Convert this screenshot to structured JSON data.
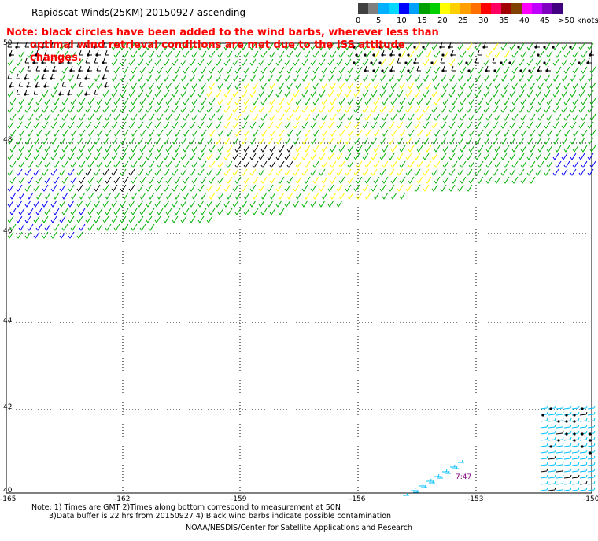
{
  "header": {
    "title": "Rapidscat Winds(25KM) 20150927 ascending",
    "note_line1": "Note: black circles have been added to the wind barbs, wherever less than",
    "note_line2": "optimal wind retrieval conditions are met due to the ISS attitude changes."
  },
  "legend": {
    "unit_label": ">50 knots",
    "items": [
      {
        "label": "0",
        "colors": [
          "#404040",
          "#808080"
        ]
      },
      {
        "label": "5",
        "colors": [
          "#00b0ff",
          "#00d8ff"
        ]
      },
      {
        "label": "10",
        "colors": [
          "#0000ff",
          "#00a0ff"
        ]
      },
      {
        "label": "15",
        "colors": [
          "#00a000",
          "#00d000"
        ]
      },
      {
        "label": "20",
        "colors": [
          "#ffff00",
          "#ffd000"
        ]
      },
      {
        "label": "25",
        "colors": [
          "#ffa000",
          "#ff7000"
        ]
      },
      {
        "label": "30",
        "colors": [
          "#ff0000",
          "#ff0060"
        ]
      },
      {
        "label": "35",
        "colors": [
          "#a00000",
          "#804000"
        ]
      },
      {
        "label": "40",
        "colors": [
          "#ff00ff",
          "#c000ff"
        ]
      },
      {
        "label": "45",
        "colors": [
          "#8000c0",
          "#400080"
        ]
      }
    ]
  },
  "map": {
    "lat_labels": [
      "50",
      "48",
      "46",
      "44",
      "42",
      "40"
    ],
    "lon_labels": [
      "-165",
      "-162",
      "-159",
      "-156",
      "-153",
      "-150"
    ],
    "time_label": "7:47",
    "colors": {
      "green": "#00b000",
      "yellow": "#ffff00",
      "blue": "#0000ff",
      "cyan": "#00c0ff",
      "black": "#000000",
      "grid": "#000000",
      "time": "#800080"
    }
  },
  "footer": {
    "line1": "Note: 1) Times are GMT 2)Times along bottom correspond to measurement at 50N",
    "line2": "3)Data buffer is 22 hrs from 20150927 4) Black wind barbs indicate possible contamination",
    "line3": "NOAA/NESDIS/Center for Satellite Applications and Research"
  }
}
